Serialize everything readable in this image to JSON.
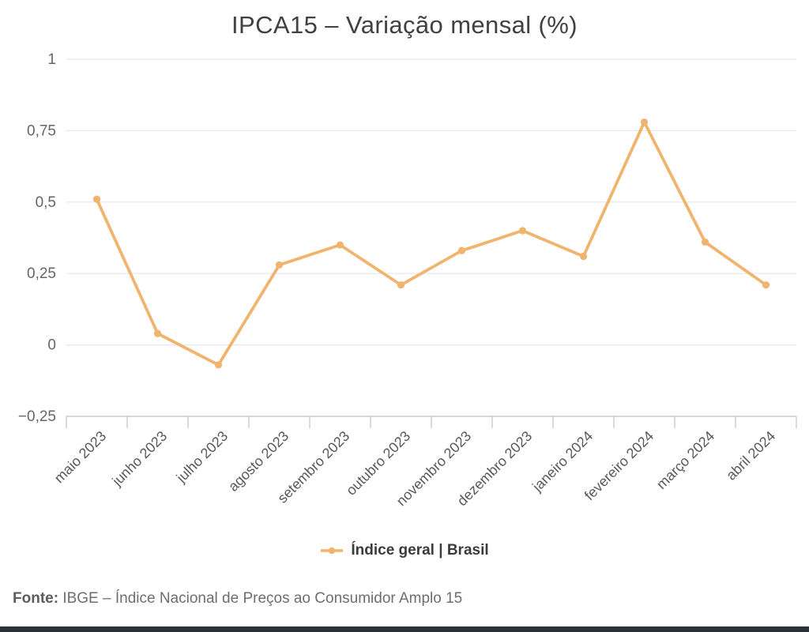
{
  "page": {
    "background": "#ffffff",
    "bottom_bar_color": "#2c3237"
  },
  "chart_data": {
    "type": "line",
    "title": "IPCA15 – Variação mensal (%)",
    "categories": [
      "maio 2023",
      "junho 2023",
      "julho 2023",
      "agosto 2023",
      "setembro 2023",
      "outubro 2023",
      "novembro 2023",
      "dezembro 2023",
      "janeiro 2024",
      "fevereiro 2024",
      "março 2024",
      "abril 2024"
    ],
    "series": [
      {
        "name": "Índice geral | Brasil",
        "values": [
          0.51,
          0.04,
          -0.07,
          0.28,
          0.35,
          0.21,
          0.33,
          0.4,
          0.31,
          0.78,
          0.36,
          0.21
        ],
        "color": "#f0b46f"
      }
    ],
    "xlabel": "",
    "ylabel": "",
    "ylim": [
      -0.25,
      1
    ],
    "ytick_step": 0.25,
    "ytick_labels": [
      "−0,25",
      "0",
      "0,25",
      "0,5",
      "0,75",
      "1"
    ],
    "grid": "horizontal",
    "legend_position": "bottom",
    "colors": {
      "grid": "#e7e7e7",
      "axis": "#c4ccd4",
      "y_label": "#666666",
      "x_label": "#58595b"
    }
  },
  "footer": {
    "prefix": "Fonte:",
    "text": " IBGE – Índice Nacional de Preços ao Consumidor Amplo 15"
  }
}
